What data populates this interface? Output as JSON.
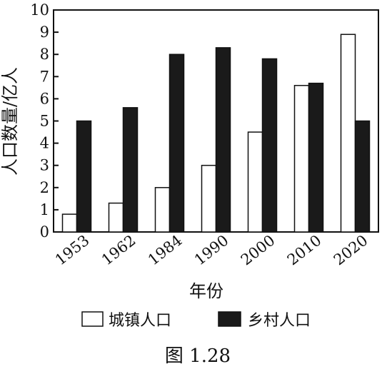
{
  "chart_data": {
    "type": "bar",
    "categories": [
      "1953",
      "1962",
      "1984",
      "1990",
      "2000",
      "2010",
      "2020"
    ],
    "series": [
      {
        "name": "城镇人口",
        "values": [
          0.8,
          1.3,
          2.0,
          3.0,
          4.5,
          6.6,
          8.9
        ],
        "color": "#ffffff"
      },
      {
        "name": "乡村人口",
        "values": [
          5.0,
          5.6,
          8.0,
          8.3,
          7.8,
          6.7,
          5.0
        ],
        "color": "#1a1a1a"
      }
    ],
    "xlabel": "年份",
    "ylabel": "人口数量/亿人",
    "ylim": [
      0,
      10
    ],
    "yticks": [
      "0",
      "1",
      "2",
      "3",
      "4",
      "5",
      "6",
      "7",
      "8",
      "9",
      "10"
    ],
    "grid": false,
    "legend_position": "bottom"
  },
  "caption": "图 1.28"
}
